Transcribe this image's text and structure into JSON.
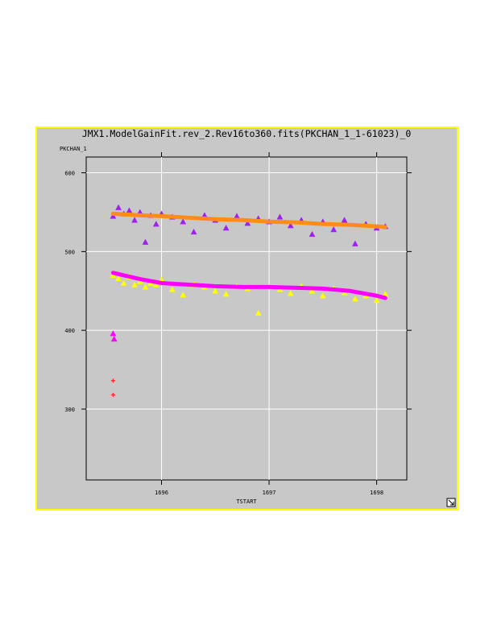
{
  "chart_data": {
    "type": "scatter",
    "title": "JMX1.ModelGainFit.rev_2.Rev16to360.fits(PKCHAN_1_1-61023)_0",
    "y_label": "PKCHAN_1",
    "x_label": "TSTART",
    "xlim": [
      1695.3,
      1698.28
    ],
    "xticks": [
      1696,
      1697,
      1698
    ],
    "ylim": [
      210,
      620
    ],
    "yticks": [
      300,
      400,
      500,
      600
    ],
    "grid": true,
    "series": [
      {
        "color": "#a020f0",
        "marker": "triangle",
        "x": [
          1695.55,
          1695.6,
          1695.65,
          1695.7,
          1695.75,
          1695.8,
          1695.85,
          1695.9,
          1695.95,
          1696.0,
          1696.1,
          1696.2,
          1696.3,
          1696.4,
          1696.5,
          1696.6,
          1696.7,
          1696.8,
          1696.9,
          1697.0,
          1697.1,
          1697.2,
          1697.3,
          1697.4,
          1697.5,
          1697.6,
          1697.7,
          1697.8,
          1697.9,
          1698.0,
          1698.08
        ],
        "values": [
          545,
          556,
          548,
          552,
          540,
          550,
          512,
          546,
          535,
          548,
          544,
          538,
          525,
          546,
          540,
          530,
          545,
          536,
          542,
          538,
          544,
          533,
          540,
          522,
          538,
          528,
          540,
          510,
          535,
          530,
          532
        ]
      },
      {
        "color": "#ffff00",
        "marker": "triangle",
        "x": [
          1695.55,
          1695.6,
          1695.65,
          1695.7,
          1695.75,
          1695.8,
          1695.85,
          1695.9,
          1695.95,
          1696.0,
          1696.1,
          1696.2,
          1696.3,
          1696.4,
          1696.5,
          1696.6,
          1696.7,
          1696.8,
          1696.9,
          1697.0,
          1697.1,
          1697.2,
          1697.3,
          1697.4,
          1697.5,
          1697.6,
          1697.7,
          1697.8,
          1697.9,
          1698.0,
          1698.08
        ],
        "values": [
          470,
          466,
          460,
          468,
          458,
          462,
          455,
          460,
          458,
          464,
          452,
          445,
          458,
          455,
          450,
          446,
          456,
          453,
          422,
          455,
          452,
          447,
          456,
          450,
          444,
          453,
          448,
          440,
          444,
          438,
          446
        ]
      },
      {
        "color": "#ff8c1a",
        "marker": "line",
        "x": [
          1695.55,
          1695.8,
          1696.0,
          1696.25,
          1696.5,
          1696.75,
          1697.0,
          1697.25,
          1697.5,
          1697.75,
          1698.0,
          1698.08
        ],
        "values": [
          548,
          546,
          545,
          543,
          541,
          540,
          538,
          537,
          535,
          534,
          532,
          531
        ]
      },
      {
        "color": "#ff00ff",
        "marker": "line",
        "x": [
          1695.55,
          1695.8,
          1696.0,
          1696.25,
          1696.5,
          1696.75,
          1697.0,
          1697.25,
          1697.5,
          1697.75,
          1698.0,
          1698.08
        ],
        "values": [
          473,
          465,
          460,
          458,
          456,
          455,
          455,
          454,
          453,
          450,
          444,
          441
        ]
      },
      {
        "color": "#ff00ff",
        "marker": "triangle",
        "x": [
          1695.55,
          1695.56
        ],
        "values": [
          396,
          389
        ]
      },
      {
        "color": "#ff2020",
        "marker": "cross",
        "x": [
          1695.55,
          1695.55
        ],
        "values": [
          336,
          318
        ]
      }
    ]
  }
}
